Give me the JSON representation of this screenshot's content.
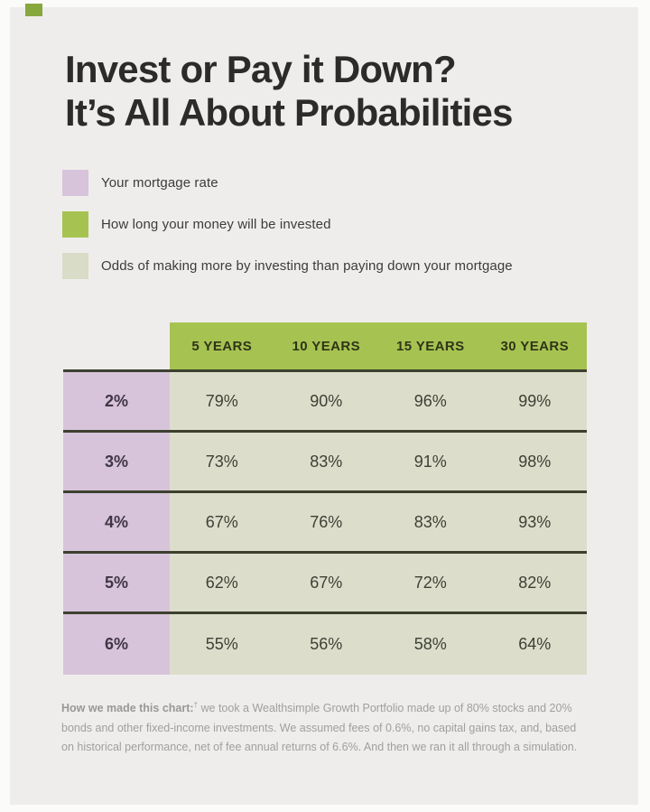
{
  "page": {
    "colors": {
      "background_panel": "#efedec",
      "outer_frame": "#fbfbfa",
      "accent_green": "#a6c351",
      "corner_accent_green": "#87a83d",
      "lavender": "#d7c4db",
      "pale_cell": "#dcdecb",
      "divider_line": "#3d402f",
      "title_text": "#2c2b29",
      "footnote_gray": "#9f9f9d"
    }
  },
  "title": {
    "line1": "Invest or Pay it Down?",
    "line2": "It’s All About Probabilities"
  },
  "legend": {
    "items": [
      {
        "label": "Your mortgage rate",
        "color": "#d7c4db"
      },
      {
        "label": "How long your money will be invested",
        "color": "#a6c351"
      },
      {
        "label": "Odds of making more by investing than paying down your mortgage",
        "color": "#d9dcc6"
      }
    ]
  },
  "table": {
    "column_headers": [
      "5 YEARS",
      "10 YEARS",
      "15 YEARS",
      "30 YEARS"
    ],
    "rows": [
      {
        "label": "2%",
        "values": [
          "79%",
          "90%",
          "96%",
          "99%"
        ]
      },
      {
        "label": "3%",
        "values": [
          "73%",
          "83%",
          "91%",
          "98%"
        ]
      },
      {
        "label": "4%",
        "values": [
          "67%",
          "76%",
          "83%",
          "93%"
        ]
      },
      {
        "label": "5%",
        "values": [
          "62%",
          "67%",
          "72%",
          "82%"
        ]
      },
      {
        "label": "6%",
        "values": [
          "55%",
          "56%",
          "58%",
          "64%"
        ]
      }
    ]
  },
  "footnote": {
    "bold_label": "How we made this chart:",
    "dagger": "†",
    "line1_rest": " we took a Wealthsimple Growth Portfolio made up of 80% stocks and 20%",
    "line2": "bonds and other fixed-income investments. We assumed fees of 0.6%, no capital gains tax, and, based",
    "line3": "on historical performance, net of fee annual returns of 6.6%. And then we ran it all through a simulation."
  },
  "chart_data": {
    "type": "table",
    "title": "Invest or Pay it Down? It’s All About Probabilities",
    "row_axis_meaning": "Your mortgage rate",
    "column_axis_meaning": "How long your money will be invested",
    "cell_meaning": "Odds of making more by investing than paying down your mortgage",
    "columns": [
      "5 YEARS",
      "10 YEARS",
      "15 YEARS",
      "30 YEARS"
    ],
    "rows": [
      "2%",
      "3%",
      "4%",
      "5%",
      "6%"
    ],
    "values_percent": [
      [
        79,
        90,
        96,
        99
      ],
      [
        73,
        83,
        91,
        98
      ],
      [
        67,
        76,
        83,
        93
      ],
      [
        62,
        67,
        72,
        82
      ],
      [
        55,
        56,
        58,
        64
      ]
    ]
  }
}
